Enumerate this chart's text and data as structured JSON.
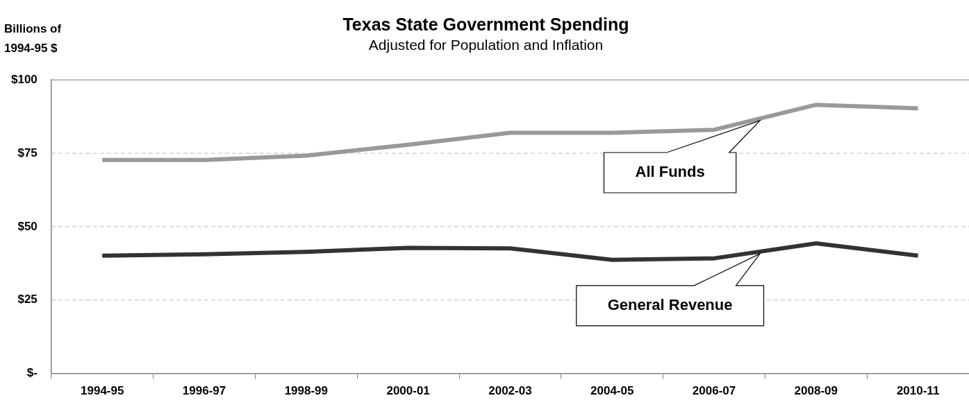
{
  "chart_data": {
    "type": "line",
    "title": "Texas State Government Spending",
    "subtitle": "Adjusted for Population and Inflation",
    "ylabel": "Billions of 1994-95 $",
    "categories": [
      "1994-95",
      "1996-97",
      "1998-99",
      "2000-01",
      "2002-03",
      "2004-05",
      "2006-07",
      "2008-09",
      "2010-11"
    ],
    "series": [
      {
        "name": "All Funds",
        "color": "#999999",
        "values": [
          72.7,
          72.7,
          74.2,
          77.9,
          82,
          82,
          83,
          91.5,
          90.3
        ]
      },
      {
        "name": "General Revenue",
        "color": "#333333",
        "values": [
          40.1,
          40.6,
          41.4,
          42.8,
          42.6,
          38.7,
          39.2,
          44.3,
          40.1
        ]
      }
    ],
    "ylim": [
      0,
      100
    ],
    "yticks": [
      {
        "value": 0,
        "label": "$-"
      },
      {
        "value": 25,
        "label": "$25"
      },
      {
        "value": 50,
        "label": "$50"
      },
      {
        "value": 75,
        "label": "$75"
      },
      {
        "value": 100,
        "label": "$100"
      }
    ],
    "grid": "y",
    "marker": "none",
    "line_style": "solid"
  }
}
